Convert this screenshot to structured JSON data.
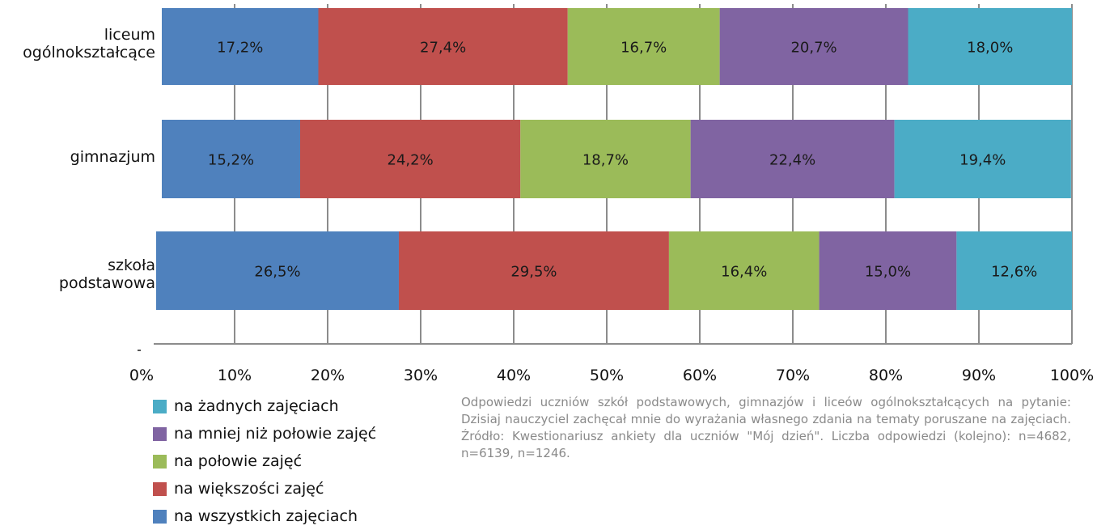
{
  "chart_data": {
    "type": "bar",
    "orientation": "horizontal",
    "stacked": true,
    "categories": [
      "liceum\nogólnokształcące",
      "gimnazjum",
      "szkoła\npodstawowa"
    ],
    "series": [
      {
        "name": "na wszystkich zajęciach",
        "values": [
          17.2,
          15.2,
          26.5
        ],
        "labels": [
          "17,2%",
          "15,2%",
          "26,5%"
        ],
        "color": "#4f81bd"
      },
      {
        "name": "na większości zajęć",
        "values": [
          27.4,
          24.2,
          29.5
        ],
        "labels": [
          "27,4%",
          "24,2%",
          "29,5%"
        ],
        "color": "#c0504d"
      },
      {
        "name": "na połowie zajęć",
        "values": [
          16.7,
          18.7,
          16.4
        ],
        "labels": [
          "16,7%",
          "18,7%",
          "16,4%"
        ],
        "color": "#9bbb59"
      },
      {
        "name": "na mniej niż połowie zajęć",
        "values": [
          20.7,
          22.4,
          15.0
        ],
        "labels": [
          "20,7%",
          "22,4%",
          "15,0%"
        ],
        "color": "#8064a2"
      },
      {
        "name": "na żadnych zajęciach",
        "values": [
          18.0,
          19.4,
          12.6
        ],
        "labels": [
          "18,0%",
          "19,4%",
          "12,6%"
        ],
        "color": "#4bacc6"
      }
    ],
    "xticks": [
      "0%",
      "10%",
      "20%",
      "30%",
      "40%",
      "50%",
      "60%",
      "70%",
      "80%",
      "90%",
      "100%"
    ],
    "xlim": [
      0,
      100
    ],
    "grid": "vertical",
    "legend_position": "bottom-left",
    "legend_order": [
      4,
      3,
      2,
      1,
      0
    ]
  },
  "note": "Odpowiedzi uczniów szkół podstawowych, gimnazjów i liceów ogólnokształcących na pytanie: Dzisiaj nauczyciel zachęcał mnie do wyrażania własnego zdania na tematy poruszane na zajęciach. Źródło: Kwestionariusz ankiety dla uczniów \"Mój dzień\". Liczba odpowiedzi (kolejno): n=4682, n=6139, n=1246."
}
